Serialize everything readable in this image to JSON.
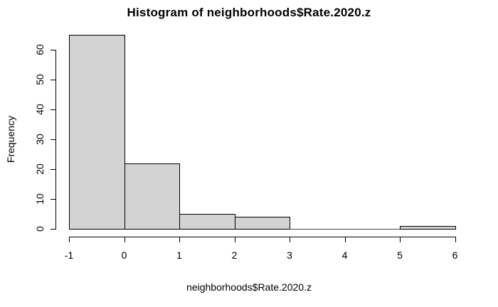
{
  "chart_data": {
    "type": "bar",
    "subtype": "histogram",
    "title": "Histogram of neighborhoods$Rate.2020.z",
    "xlabel": "neighborhoods$Rate.2020.z",
    "ylabel": "Frequency",
    "breaks": [
      -1,
      0,
      1,
      2,
      3,
      4,
      5,
      6
    ],
    "counts": [
      65,
      22,
      5,
      4,
      0,
      0,
      1
    ],
    "x_ticks": [
      "-1",
      "0",
      "1",
      "2",
      "3",
      "4",
      "5",
      "6"
    ],
    "y_ticks": [
      "0",
      "10",
      "20",
      "30",
      "40",
      "50",
      "60"
    ],
    "xlim": [
      -1,
      6
    ],
    "ylim": [
      0,
      60
    ],
    "grid": false,
    "legend": false,
    "bar_fill": "#d3d3d3",
    "bar_border": "#000000",
    "axis_color": "#000000",
    "text_color": "#000000",
    "background": "#ffffff"
  }
}
